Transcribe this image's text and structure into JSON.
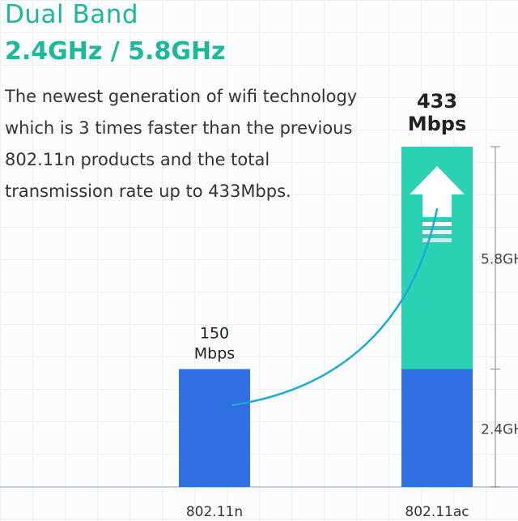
{
  "header": {
    "title": "Dual Band",
    "subtitle": "2.4GHz / 5.8GHz",
    "description": [
      "The newest generation of wifi technology",
      "which is 3 times faster than the previous",
      "802.11n products and the total",
      "transmission rate up to 433Mbps."
    ]
  },
  "colors": {
    "accent": "#1bb89a",
    "bar_blue": "#2f6fe0",
    "bar_teal": "#2bd1b3",
    "curve": "#1aa9d8"
  },
  "chart_data": {
    "type": "bar",
    "categories": [
      "802.11n",
      "802.11ac"
    ],
    "series": [
      {
        "values": [
          150,
          150
        ]
      },
      {
        "values": [
          0,
          283
        ]
      }
    ],
    "data_labels": [
      {
        "value": "150",
        "unit": "Mbps"
      },
      {
        "value": "433",
        "unit": "Mbps"
      }
    ],
    "band_labels": [
      "5.8GH",
      "2.4GH"
    ],
    "ylim": [
      0,
      433
    ],
    "grid": true
  }
}
